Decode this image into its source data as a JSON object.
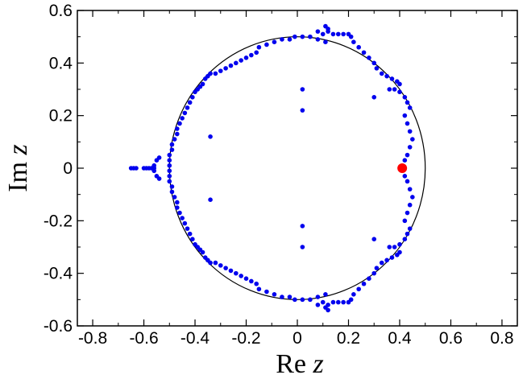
{
  "chart_data": {
    "type": "scatter",
    "title": "",
    "xlabel": "Re z",
    "ylabel": "Im z",
    "xlabel_parts": {
      "text": "Re",
      "var": "z"
    },
    "ylabel_parts": {
      "text": "Im",
      "var": "z"
    },
    "xlim": [
      -0.86,
      0.86
    ],
    "ylim": [
      -0.6,
      0.6
    ],
    "x_ticks": [
      -0.8,
      -0.6,
      -0.4,
      -0.2,
      0,
      0.2,
      0.4,
      0.6,
      0.8
    ],
    "x_tick_labels": [
      "-0.8",
      "-0.6",
      "-0.4",
      "-0.2",
      "0",
      "0.2",
      "0.4",
      "0.6",
      "0.8"
    ],
    "y_ticks": [
      -0.6,
      -0.4,
      -0.2,
      0,
      0.2,
      0.4,
      0.6
    ],
    "y_tick_labels": [
      "-0.6",
      "-0.4",
      "-0.2",
      "0",
      "0.2",
      "0.4",
      "0.6"
    ],
    "grid": false,
    "legend": "none",
    "reference_circle": {
      "center": [
        0,
        0
      ],
      "radius": 0.5,
      "color": "#000000"
    },
    "colors": {
      "zeros": "#0000ee",
      "highlight": "#ff0000"
    },
    "series": [
      {
        "values": [
          [
            0.02,
            0.5
          ],
          [
            0.05,
            0.5
          ],
          [
            0.08,
            0.49
          ],
          [
            0.11,
            0.48
          ],
          [
            0.08,
            0.52
          ],
          [
            0.1,
            0.51
          ],
          [
            0.12,
            0.52
          ],
          [
            0.14,
            0.51
          ],
          [
            0.16,
            0.51
          ],
          [
            0.18,
            0.51
          ],
          [
            0.2,
            0.51
          ],
          [
            0.21,
            0.5
          ],
          [
            0.11,
            0.54
          ],
          [
            0.12,
            0.53
          ],
          [
            0.22,
            0.48
          ],
          [
            0.24,
            0.46
          ],
          [
            0.26,
            0.44
          ],
          [
            0.28,
            0.42
          ],
          [
            0.3,
            0.4
          ],
          [
            0.31,
            0.38
          ],
          [
            0.33,
            0.36
          ],
          [
            0.35,
            0.35
          ],
          [
            0.37,
            0.34
          ],
          [
            0.39,
            0.33
          ],
          [
            0.4,
            0.32
          ],
          [
            0.36,
            0.3
          ],
          [
            0.38,
            0.3
          ],
          [
            0.4,
            0.29
          ],
          [
            0.42,
            0.27
          ],
          [
            0.43,
            0.25
          ],
          [
            0.44,
            0.23
          ],
          [
            0.3,
            0.27
          ],
          [
            0.42,
            0.2
          ],
          [
            0.43,
            0.17
          ],
          [
            0.44,
            0.14
          ],
          [
            0.45,
            0.11
          ],
          [
            0.44,
            0.08
          ],
          [
            0.43,
            0.05
          ],
          [
            0.42,
            0.03
          ],
          [
            0.42,
            -0.03
          ],
          [
            0.43,
            -0.05
          ],
          [
            0.44,
            -0.08
          ],
          [
            0.45,
            -0.11
          ],
          [
            0.44,
            -0.14
          ],
          [
            0.43,
            -0.17
          ],
          [
            0.42,
            -0.2
          ],
          [
            0.44,
            -0.23
          ],
          [
            0.43,
            -0.25
          ],
          [
            0.42,
            -0.27
          ],
          [
            0.4,
            -0.29
          ],
          [
            0.38,
            -0.3
          ],
          [
            0.36,
            -0.3
          ],
          [
            0.3,
            -0.27
          ],
          [
            0.4,
            -0.32
          ],
          [
            0.39,
            -0.33
          ],
          [
            0.37,
            -0.34
          ],
          [
            0.35,
            -0.35
          ],
          [
            0.33,
            -0.36
          ],
          [
            0.31,
            -0.38
          ],
          [
            0.3,
            -0.4
          ],
          [
            0.28,
            -0.42
          ],
          [
            0.26,
            -0.44
          ],
          [
            0.24,
            -0.46
          ],
          [
            0.22,
            -0.48
          ],
          [
            0.21,
            -0.5
          ],
          [
            0.2,
            -0.51
          ],
          [
            0.18,
            -0.51
          ],
          [
            0.16,
            -0.51
          ],
          [
            0.14,
            -0.51
          ],
          [
            0.12,
            -0.52
          ],
          [
            0.1,
            -0.51
          ],
          [
            0.08,
            -0.52
          ],
          [
            0.11,
            -0.53
          ],
          [
            0.12,
            -0.54
          ],
          [
            0.11,
            -0.48
          ],
          [
            0.08,
            -0.49
          ],
          [
            0.05,
            -0.5
          ],
          [
            0.02,
            -0.5
          ],
          [
            -0.01,
            0.5
          ],
          [
            -0.03,
            0.49
          ],
          [
            -0.06,
            0.49
          ],
          [
            -0.09,
            0.48
          ],
          [
            -0.12,
            0.47
          ],
          [
            -0.15,
            0.46
          ],
          [
            -0.16,
            0.44
          ],
          [
            -0.18,
            0.43
          ],
          [
            -0.2,
            0.42
          ],
          [
            -0.22,
            0.41
          ],
          [
            -0.24,
            0.4
          ],
          [
            -0.26,
            0.39
          ],
          [
            -0.28,
            0.38
          ],
          [
            -0.3,
            0.37
          ],
          [
            -0.32,
            0.36
          ],
          [
            -0.34,
            0.36
          ],
          [
            -0.35,
            0.35
          ],
          [
            -0.36,
            0.34
          ],
          [
            -0.37,
            0.32
          ],
          [
            -0.38,
            0.31
          ],
          [
            -0.39,
            0.3
          ],
          [
            -0.4,
            0.29
          ],
          [
            -0.41,
            0.27
          ],
          [
            -0.42,
            0.25
          ],
          [
            -0.43,
            0.23
          ],
          [
            -0.44,
            0.21
          ],
          [
            -0.45,
            0.19
          ],
          [
            -0.46,
            0.17
          ],
          [
            -0.47,
            0.15
          ],
          [
            -0.47,
            0.13
          ],
          [
            -0.48,
            0.11
          ],
          [
            -0.49,
            0.09
          ],
          [
            -0.49,
            0.07
          ],
          [
            -0.5,
            0.05
          ],
          [
            -0.5,
            0.03
          ],
          [
            -0.5,
            0.01
          ],
          [
            -0.01,
            -0.5
          ],
          [
            -0.03,
            -0.49
          ],
          [
            -0.06,
            -0.49
          ],
          [
            -0.09,
            -0.48
          ],
          [
            -0.12,
            -0.47
          ],
          [
            -0.15,
            -0.46
          ],
          [
            -0.16,
            -0.44
          ],
          [
            -0.18,
            -0.43
          ],
          [
            -0.2,
            -0.42
          ],
          [
            -0.22,
            -0.41
          ],
          [
            -0.24,
            -0.4
          ],
          [
            -0.26,
            -0.39
          ],
          [
            -0.28,
            -0.38
          ],
          [
            -0.3,
            -0.37
          ],
          [
            -0.32,
            -0.36
          ],
          [
            -0.34,
            -0.36
          ],
          [
            -0.35,
            -0.35
          ],
          [
            -0.36,
            -0.34
          ],
          [
            -0.37,
            -0.32
          ],
          [
            -0.38,
            -0.31
          ],
          [
            -0.39,
            -0.3
          ],
          [
            -0.4,
            -0.29
          ],
          [
            -0.41,
            -0.27
          ],
          [
            -0.42,
            -0.25
          ],
          [
            -0.43,
            -0.23
          ],
          [
            -0.44,
            -0.21
          ],
          [
            -0.45,
            -0.19
          ],
          [
            -0.46,
            -0.17
          ],
          [
            -0.47,
            -0.15
          ],
          [
            -0.47,
            -0.13
          ],
          [
            -0.48,
            -0.11
          ],
          [
            -0.49,
            -0.09
          ],
          [
            -0.49,
            -0.07
          ],
          [
            -0.5,
            -0.05
          ],
          [
            -0.5,
            -0.03
          ],
          [
            -0.5,
            -0.01
          ],
          [
            -0.54,
            0.04
          ],
          [
            -0.55,
            0.03
          ],
          [
            -0.56,
            0.01
          ],
          [
            -0.54,
            -0.04
          ],
          [
            -0.55,
            -0.03
          ],
          [
            -0.56,
            -0.01
          ],
          [
            -0.56,
            0.0
          ],
          [
            -0.57,
            0.0
          ],
          [
            -0.58,
            0.0
          ],
          [
            -0.59,
            0.0
          ],
          [
            -0.6,
            0.0
          ],
          [
            -0.63,
            0.0
          ],
          [
            -0.64,
            0.0
          ],
          [
            -0.65,
            0.0
          ],
          [
            -0.34,
            0.12
          ],
          [
            -0.34,
            -0.12
          ],
          [
            0.02,
            0.3
          ],
          [
            0.02,
            0.22
          ],
          [
            0.02,
            -0.22
          ],
          [
            0.02,
            -0.3
          ]
        ]
      },
      {
        "values": [
          [
            0.41,
            0.0
          ]
        ]
      }
    ]
  }
}
